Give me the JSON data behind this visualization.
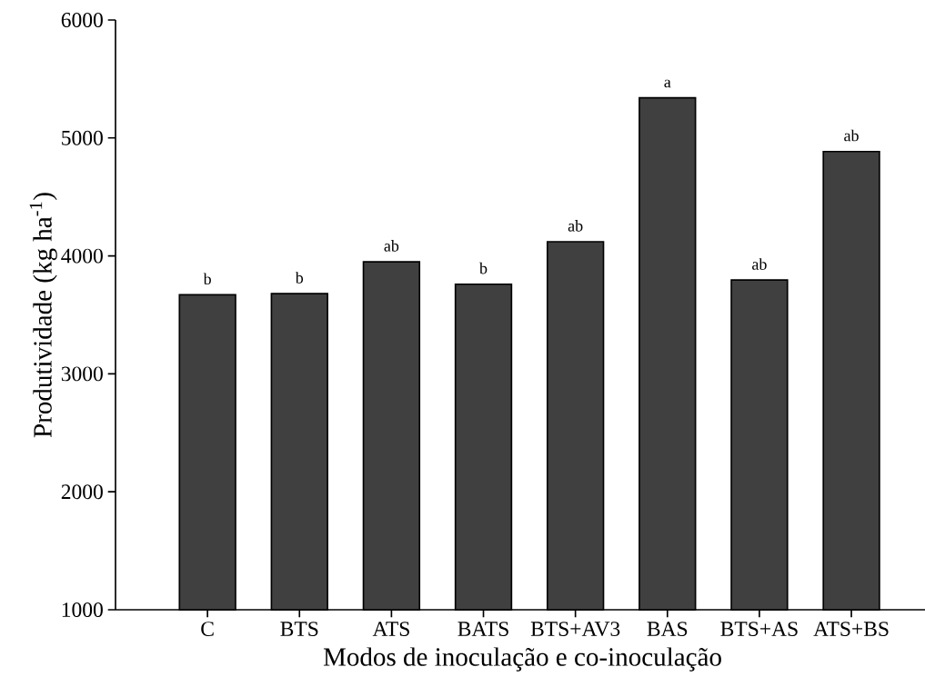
{
  "chart_data": {
    "type": "bar",
    "xlabel": "Modos de inoculação e co-inoculação",
    "ylabel": "Produtividade (kg ha$^{-1}$)",
    "categories": [
      "C",
      "BTS",
      "ATS",
      "BATS",
      "BTS+AV3",
      "BAS",
      "BTS+AS",
      "ATS+BS"
    ],
    "values": [
      3670,
      3680,
      3950,
      3760,
      4120,
      5340,
      3795,
      4885
    ],
    "color": "#404040",
    "ylim": [
      1000,
      6000
    ],
    "yticks": [
      1000,
      2000,
      3000,
      4000,
      5000,
      6000
    ],
    "annotations": [
      {
        "text": "b",
        "x": "C",
        "y": 3670
      },
      {
        "text": "b",
        "x": "BTS",
        "y": 3680
      },
      {
        "text": "ab",
        "x": "ATS",
        "y": 3950
      },
      {
        "text": "b",
        "x": "BATS",
        "y": 3760
      },
      {
        "text": "ab",
        "x": "BTS+AV3",
        "y": 4120
      },
      {
        "text": "a",
        "x": "BAS",
        "y": 5340
      },
      {
        "text": "ab",
        "x": "BTS+AS",
        "y": 3795
      },
      {
        "text": "ab",
        "x": "ATS+BS",
        "y": 4885
      }
    ]
  }
}
